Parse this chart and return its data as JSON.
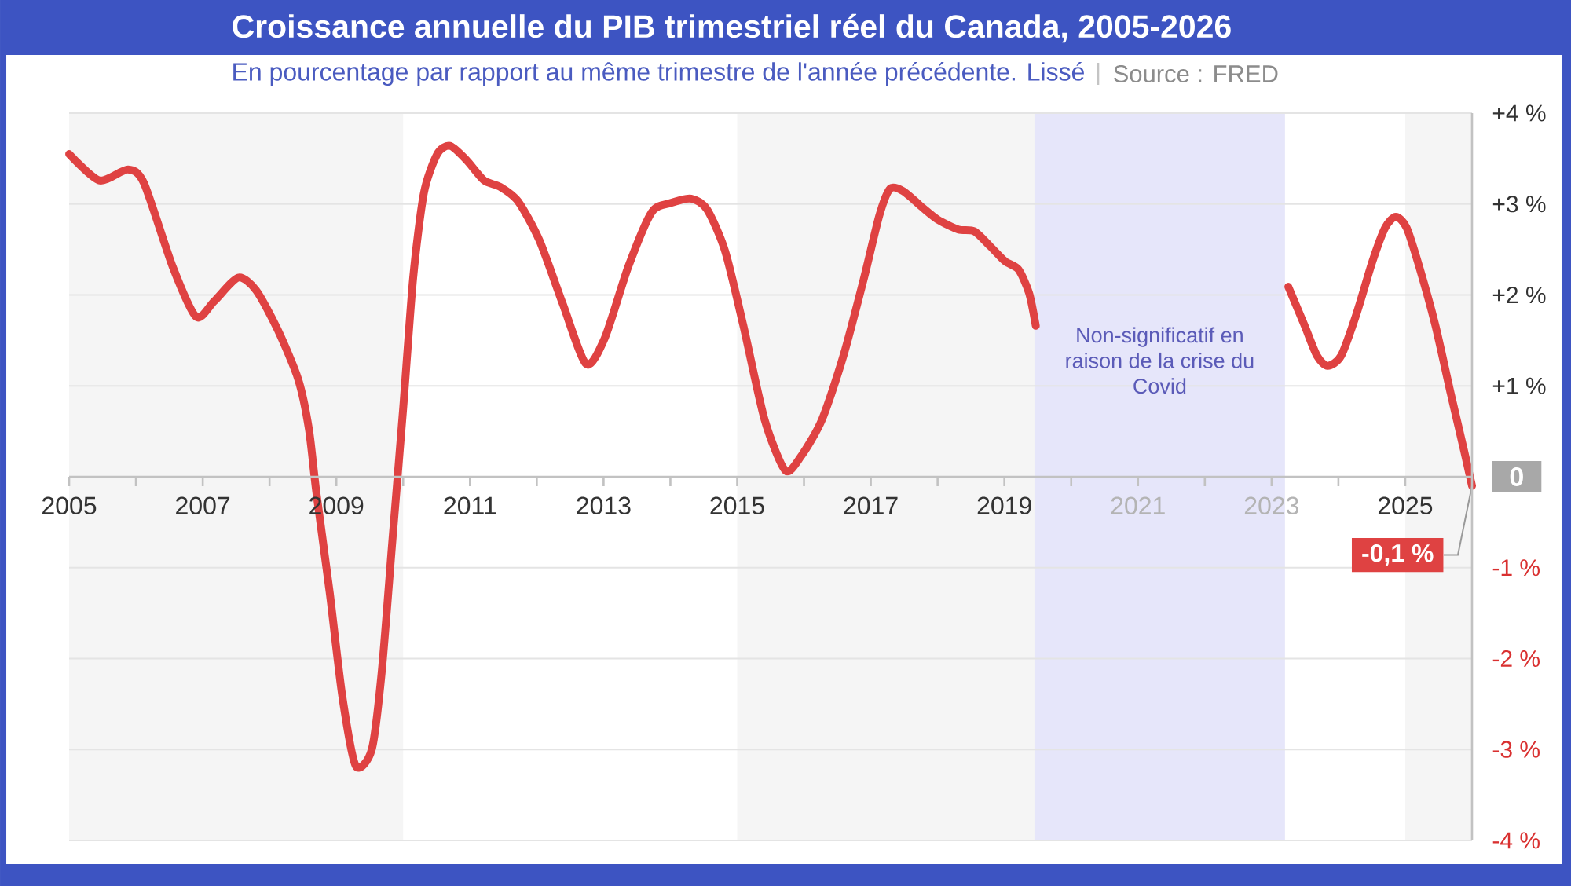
{
  "chart_data": {
    "type": "line",
    "title": "Croissance annuelle du PIB trimestriel réel du Canada, 2005-2026",
    "subtitle": "En pourcentage par rapport au même trimestre de l'année précédente. Lissé",
    "annotations": [
      "Source : FRED",
      {
        "text": "-0,1 %",
        "x": 2026,
        "y": -0.1
      }
    ],
    "x": [
      2005.0,
      2005.45,
      2005.88,
      2006.12,
      2006.55,
      2006.9,
      2007.17,
      2007.53,
      2007.8,
      2008.12,
      2008.43,
      2008.59,
      2008.7,
      2008.9,
      2009.09,
      2009.29,
      2009.53,
      2009.68,
      2009.84,
      2010.0,
      2010.15,
      2010.31,
      2010.51,
      2010.7,
      2010.94,
      2011.21,
      2011.45,
      2011.72,
      2012.04,
      2012.39,
      2012.74,
      2013.02,
      2013.37,
      2013.72,
      2014.0,
      2014.31,
      2014.55,
      2014.82,
      2015.09,
      2015.41,
      2015.72,
      2015.96,
      2016.27,
      2016.59,
      2016.9,
      2017.13,
      2017.29,
      2017.49,
      2017.76,
      2018.0,
      2018.31,
      2018.55,
      2018.78,
      2019.01,
      2019.21,
      2019.37,
      2019.47,
      2021.3,
      2023.25,
      2023.49,
      2023.68,
      2023.84,
      2024.04,
      2024.27,
      2024.51,
      2024.7,
      2024.86,
      2025.02,
      2025.21,
      2025.45,
      2025.68,
      2025.88,
      2026.0
    ],
    "series": [
      {
        "color": "#df4242",
        "values": [
          3.55,
          3.26,
          3.38,
          3.23,
          2.31,
          1.76,
          1.93,
          2.19,
          2.05,
          1.62,
          1.07,
          0.52,
          -0.17,
          -1.27,
          -2.42,
          -3.18,
          -3.0,
          -2.14,
          -0.69,
          0.75,
          2.19,
          3.12,
          3.55,
          3.64,
          3.49,
          3.26,
          3.19,
          3.03,
          2.6,
          1.9,
          1.24,
          1.53,
          2.31,
          2.91,
          3.01,
          3.06,
          2.94,
          2.48,
          1.67,
          0.63,
          0.07,
          0.23,
          0.63,
          1.33,
          2.19,
          2.88,
          3.17,
          3.14,
          2.97,
          2.83,
          2.72,
          2.7,
          2.54,
          2.37,
          2.28,
          2.02,
          1.66,
          null,
          2.09,
          1.67,
          1.33,
          1.22,
          1.33,
          1.79,
          2.37,
          2.74,
          2.86,
          2.74,
          2.31,
          1.67,
          0.92,
          0.29,
          -0.1
        ]
      }
    ],
    "xlim": [
      2005,
      2026
    ],
    "ylim": [
      -4,
      4
    ],
    "xticks": [
      2005,
      {
        "value": 2006,
        "label": null
      },
      2007,
      {
        "value": 2008,
        "label": null
      },
      2009,
      {
        "value": 2010,
        "label": null
      },
      2011,
      {
        "value": 2012,
        "label": null
      },
      2013,
      {
        "value": 2014,
        "label": null
      },
      2015,
      {
        "value": 2016,
        "label": null
      },
      2017,
      {
        "value": 2018,
        "label": null
      },
      2019,
      {
        "value": 2020,
        "label": null
      },
      2021,
      {
        "value": 2022,
        "label": null
      },
      2023,
      {
        "value": 2024,
        "label": null
      },
      2025
    ],
    "yticks": [
      {
        "value": -4,
        "label": "-4 %"
      },
      {
        "value": -3,
        "label": "-3 %"
      },
      {
        "value": -2,
        "label": "-2 %"
      },
      {
        "value": -1,
        "label": "-1 %"
      },
      0,
      {
        "value": 1,
        "label": "+1 %"
      },
      {
        "value": 2,
        "label": "+2 %"
      },
      {
        "value": 3,
        "label": "+3 %"
      },
      {
        "value": 4,
        "label": "+4 %"
      }
    ],
    "grid": "y",
    "bands": [
      {
        "axis": "x",
        "from": 2005,
        "to": 2010,
        "color": "#f5f5f5"
      },
      {
        "axis": "x",
        "from": 2015,
        "to": 2019.45,
        "color": "#f5f5f5"
      },
      {
        "axis": "x",
        "from": 2019.45,
        "to": 2023.2,
        "label": "Non-significatif en raison de la crise du Covid",
        "color": "#e6e6fa"
      },
      {
        "axis": "x",
        "from": 2025,
        "to": 2026,
        "color": "#f5f5f5"
      }
    ]
  }
}
